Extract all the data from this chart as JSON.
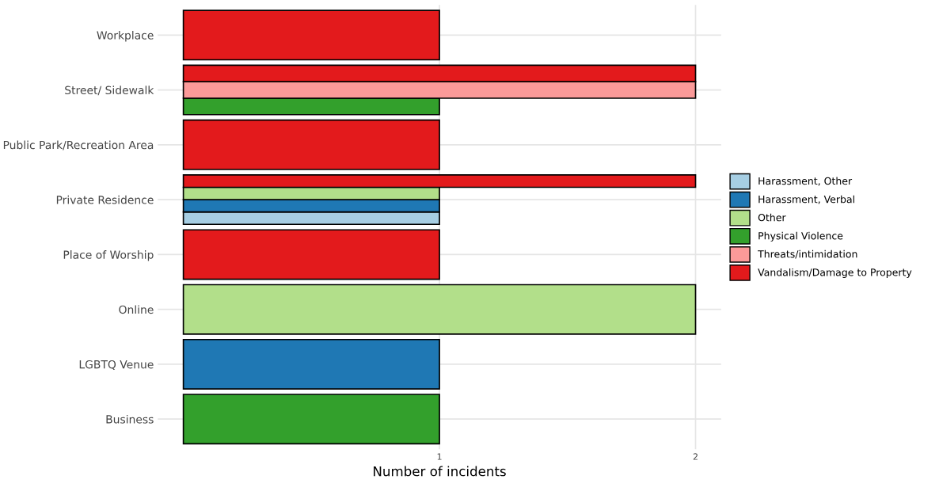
{
  "chart_data": {
    "type": "bar",
    "orientation": "horizontal",
    "xlabel": "Number of incidents",
    "categories": [
      "Workplace",
      "Street/ Sidewalk",
      "Public Park/Recreation Area",
      "Private Residence",
      "Place of Worship",
      "Online",
      "LGBTQ Venue",
      "Business"
    ],
    "series": [
      {
        "name": "Harassment, Other",
        "color": "#a6cee3",
        "values": [
          null,
          null,
          null,
          1,
          null,
          null,
          null,
          null
        ]
      },
      {
        "name": "Harassment, Verbal",
        "color": "#1f78b4",
        "values": [
          null,
          null,
          null,
          1,
          null,
          null,
          1,
          null
        ]
      },
      {
        "name": "Other",
        "color": "#b2df8a",
        "values": [
          null,
          null,
          null,
          1,
          null,
          2,
          null,
          null
        ]
      },
      {
        "name": "Physical Violence",
        "color": "#33a02c",
        "values": [
          null,
          1,
          null,
          null,
          null,
          null,
          null,
          1
        ]
      },
      {
        "name": "Threats/intimidation",
        "color": "#fb9a99",
        "values": [
          null,
          2,
          null,
          null,
          null,
          null,
          null,
          null
        ]
      },
      {
        "name": "Vandalism/Damage to Property",
        "color": "#e31a1c",
        "values": [
          1,
          2,
          1,
          2,
          1,
          null,
          null,
          null
        ]
      }
    ],
    "xlim": [
      -0.1,
      2.1
    ],
    "xticks": [
      1,
      2
    ],
    "grid": true,
    "legend": "right"
  }
}
